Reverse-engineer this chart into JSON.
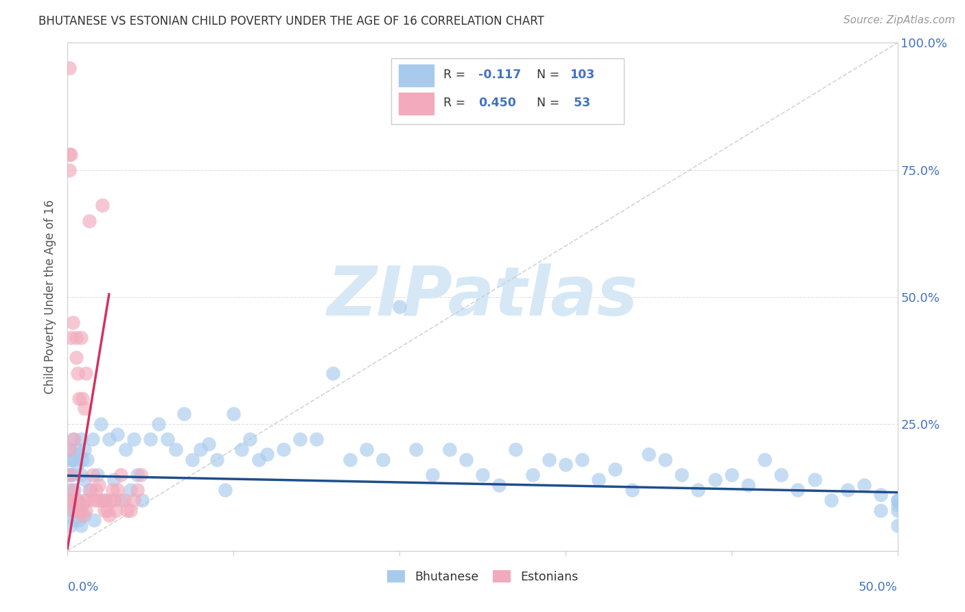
{
  "title": "BHUTANESE VS ESTONIAN CHILD POVERTY UNDER THE AGE OF 16 CORRELATION CHART",
  "source": "Source: ZipAtlas.com",
  "ylabel": "Child Poverty Under the Age of 16",
  "blue_color": "#A8CAED",
  "pink_color": "#F2AABC",
  "trend_blue_color": "#1F4E8C",
  "trend_pink_color": "#D63060",
  "trend_gray_color": "#CCCCCC",
  "watermark": "ZIPatlas",
  "watermark_color": "#D6E8F5",
  "background": "#FFFFFF",
  "grid_color": "#DDDDDD",
  "title_color": "#333333",
  "tick_label_color": "#4472C4",
  "source_color": "#999999",
  "ylabel_color": "#555555",
  "blue_r_text": "-0.117",
  "pink_r_text": "0.450",
  "blue_n_text": "103",
  "pink_n_text": "53",
  "blue_x": [
    0.001,
    0.001,
    0.001,
    0.001,
    0.001,
    0.002,
    0.002,
    0.002,
    0.002,
    0.003,
    0.003,
    0.003,
    0.004,
    0.004,
    0.004,
    0.005,
    0.005,
    0.006,
    0.006,
    0.007,
    0.007,
    0.008,
    0.008,
    0.008,
    0.009,
    0.009,
    0.01,
    0.01,
    0.01,
    0.012,
    0.013,
    0.015,
    0.016,
    0.018,
    0.02,
    0.022,
    0.025,
    0.028,
    0.03,
    0.032,
    0.035,
    0.038,
    0.04,
    0.042,
    0.045,
    0.05,
    0.055,
    0.06,
    0.065,
    0.07,
    0.075,
    0.08,
    0.085,
    0.09,
    0.095,
    0.1,
    0.105,
    0.11,
    0.115,
    0.12,
    0.13,
    0.14,
    0.15,
    0.16,
    0.17,
    0.18,
    0.19,
    0.2,
    0.21,
    0.22,
    0.23,
    0.24,
    0.25,
    0.26,
    0.27,
    0.28,
    0.29,
    0.3,
    0.31,
    0.32,
    0.33,
    0.34,
    0.35,
    0.36,
    0.37,
    0.38,
    0.39,
    0.4,
    0.41,
    0.42,
    0.43,
    0.44,
    0.45,
    0.46,
    0.47,
    0.48,
    0.49,
    0.49,
    0.5,
    0.5,
    0.5,
    0.5,
    0.5
  ],
  "blue_y": [
    0.18,
    0.15,
    0.12,
    0.1,
    0.08,
    0.2,
    0.18,
    0.15,
    0.05,
    0.22,
    0.15,
    0.08,
    0.18,
    0.12,
    0.06,
    0.2,
    0.1,
    0.17,
    0.08,
    0.19,
    0.06,
    0.22,
    0.15,
    0.05,
    0.18,
    0.09,
    0.2,
    0.14,
    0.07,
    0.18,
    0.12,
    0.22,
    0.06,
    0.15,
    0.25,
    0.1,
    0.22,
    0.14,
    0.23,
    0.1,
    0.2,
    0.12,
    0.22,
    0.15,
    0.1,
    0.22,
    0.25,
    0.22,
    0.2,
    0.27,
    0.18,
    0.2,
    0.21,
    0.18,
    0.12,
    0.27,
    0.2,
    0.22,
    0.18,
    0.19,
    0.2,
    0.22,
    0.22,
    0.35,
    0.18,
    0.2,
    0.18,
    0.48,
    0.2,
    0.15,
    0.2,
    0.18,
    0.15,
    0.13,
    0.2,
    0.15,
    0.18,
    0.17,
    0.18,
    0.14,
    0.16,
    0.12,
    0.19,
    0.18,
    0.15,
    0.12,
    0.14,
    0.15,
    0.13,
    0.18,
    0.15,
    0.12,
    0.14,
    0.1,
    0.12,
    0.13,
    0.11,
    0.08,
    0.1,
    0.05,
    0.09,
    0.1,
    0.08
  ],
  "pink_x": [
    0.001,
    0.001,
    0.001,
    0.001,
    0.001,
    0.001,
    0.002,
    0.002,
    0.002,
    0.003,
    0.003,
    0.004,
    0.004,
    0.005,
    0.005,
    0.006,
    0.006,
    0.007,
    0.007,
    0.008,
    0.008,
    0.009,
    0.009,
    0.01,
    0.01,
    0.011,
    0.011,
    0.012,
    0.013,
    0.014,
    0.015,
    0.016,
    0.017,
    0.018,
    0.019,
    0.02,
    0.021,
    0.022,
    0.023,
    0.024,
    0.025,
    0.026,
    0.027,
    0.028,
    0.029,
    0.03,
    0.032,
    0.034,
    0.036,
    0.038,
    0.04,
    0.042,
    0.044
  ],
  "pink_y": [
    0.95,
    0.78,
    0.75,
    0.2,
    0.15,
    0.1,
    0.78,
    0.42,
    0.1,
    0.45,
    0.12,
    0.22,
    0.08,
    0.42,
    0.38,
    0.35,
    0.1,
    0.3,
    0.08,
    0.42,
    0.08,
    0.3,
    0.07,
    0.28,
    0.1,
    0.35,
    0.08,
    0.1,
    0.65,
    0.12,
    0.15,
    0.1,
    0.12,
    0.1,
    0.13,
    0.1,
    0.68,
    0.08,
    0.1,
    0.08,
    0.07,
    0.1,
    0.12,
    0.1,
    0.08,
    0.12,
    0.15,
    0.1,
    0.08,
    0.08,
    0.1,
    0.12,
    0.15
  ],
  "blue_trend_x": [
    0.0,
    0.5
  ],
  "blue_trend_y": [
    0.148,
    0.115
  ],
  "pink_trend_x": [
    0.0,
    0.025
  ],
  "pink_trend_y": [
    0.005,
    0.505
  ],
  "gray_trend_x": [
    0.0,
    0.5
  ],
  "gray_trend_y": [
    0.0,
    1.0
  ],
  "xlim": [
    0.0,
    0.5
  ],
  "ylim": [
    0.0,
    1.0
  ],
  "yticks": [
    0.0,
    0.25,
    0.5,
    0.75,
    1.0
  ],
  "ytick_labels": [
    "",
    "25.0%",
    "50.0%",
    "75.0%",
    "100.0%"
  ],
  "xtick_positions": [
    0.0,
    0.1,
    0.2,
    0.3,
    0.4,
    0.5
  ]
}
